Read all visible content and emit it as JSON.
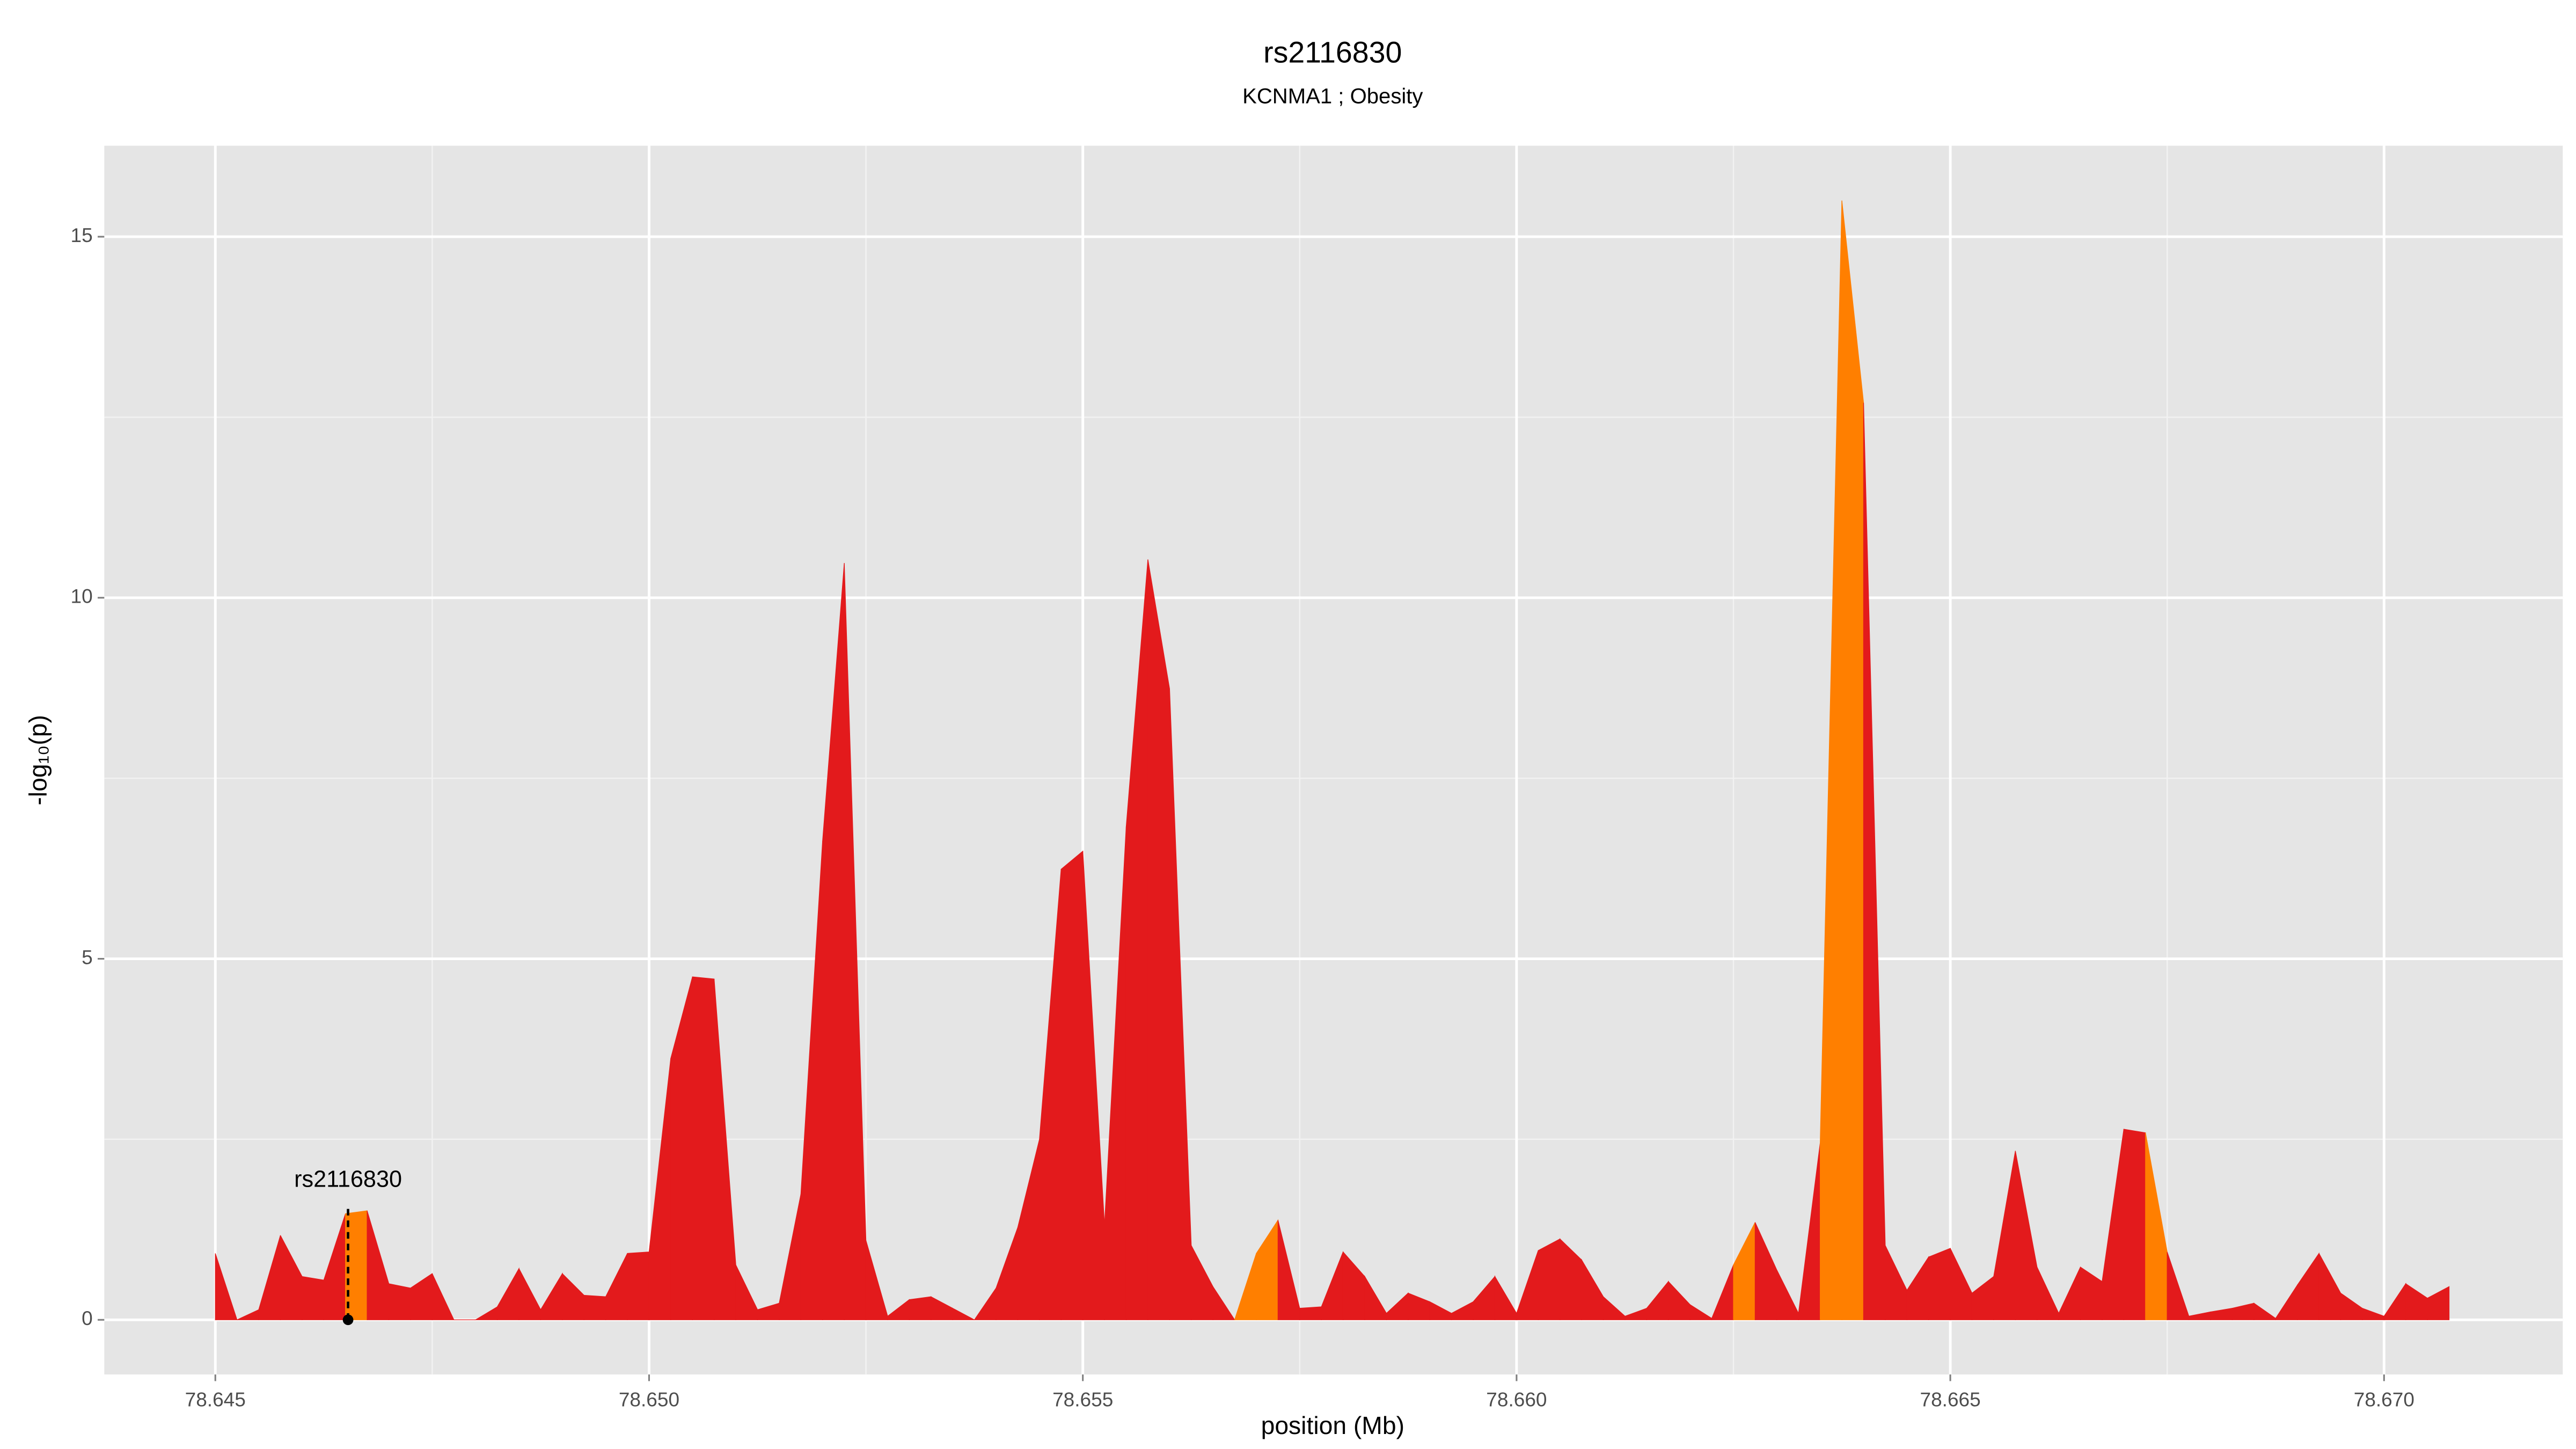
{
  "chart_data": {
    "type": "area",
    "title": "rs2116830",
    "subtitle": "KCNMA1 ; Obesity",
    "x_label": "position (Mb)",
    "y_label": "-log₁₀(p)",
    "x": [
      78.645,
      78.64525,
      78.6455,
      78.64575,
      78.646,
      78.64625,
      78.6465,
      78.64675,
      78.647,
      78.64725,
      78.6475,
      78.64775,
      78.648,
      78.64825,
      78.6485,
      78.64875,
      78.649,
      78.64925,
      78.6495,
      78.64975,
      78.65,
      78.65025,
      78.6505,
      78.65075,
      78.651,
      78.65125,
      78.6515,
      78.65175,
      78.652,
      78.65225,
      78.6525,
      78.65275,
      78.653,
      78.65325,
      78.6535,
      78.65375,
      78.654,
      78.65425,
      78.6545,
      78.65475,
      78.655,
      78.65525,
      78.6555,
      78.65575,
      78.656,
      78.65625,
      78.6565,
      78.65675,
      78.657,
      78.65725,
      78.6575,
      78.65775,
      78.658,
      78.65825,
      78.6585,
      78.65875,
      78.659,
      78.65925,
      78.6595,
      78.65975,
      78.66,
      78.66025,
      78.6605,
      78.66075,
      78.661,
      78.66125,
      78.6615,
      78.66175,
      78.662,
      78.66225,
      78.6625,
      78.66275,
      78.663,
      78.66325,
      78.6635,
      78.66375,
      78.664,
      78.66425,
      78.6645,
      78.66475,
      78.665,
      78.66525,
      78.6655,
      78.66575,
      78.666,
      78.66625,
      78.6665,
      78.66675,
      78.667,
      78.66725,
      78.6675,
      78.66775,
      78.668,
      78.66825,
      78.6685,
      78.66875,
      78.669,
      78.66925,
      78.6695,
      78.66975,
      78.67,
      78.67025,
      78.6705,
      78.67075
    ],
    "y": [
      0.92,
      0,
      0.14,
      1.17,
      0.6,
      0.55,
      1.47,
      1.51,
      0.5,
      0.44,
      0.64,
      0,
      0,
      0.18,
      0.71,
      0.14,
      0.64,
      0.34,
      0.32,
      0.92,
      0.94,
      3.62,
      4.75,
      4.72,
      0.76,
      0.14,
      0.23,
      1.74,
      6.63,
      10.48,
      1.1,
      0.05,
      0.28,
      0.32,
      0.16,
      0,
      0.44,
      1.28,
      2.5,
      6.24,
      6.49,
      1.31,
      6.83,
      10.53,
      8.74,
      1.03,
      0.46,
      0,
      0.92,
      1.38,
      0.16,
      0.18,
      0.94,
      0.6,
      0.09,
      0.37,
      0.25,
      0.09,
      0.25,
      0.6,
      0.09,
      0.96,
      1.12,
      0.83,
      0.32,
      0.05,
      0.16,
      0.53,
      0.21,
      0.02,
      0.76,
      1.35,
      0.69,
      0.09,
      2.45,
      15.5,
      12.7,
      1.03,
      0.41,
      0.87,
      0.99,
      0.37,
      0.6,
      2.34,
      0.73,
      0.09,
      0.73,
      0.53,
      2.64,
      2.59,
      0.94,
      0.05,
      0.11,
      0.16,
      0.23,
      0.02,
      0.48,
      0.92,
      0.37,
      0.16,
      0.05,
      0.5,
      0.3,
      0.46
    ],
    "color": "#e31a1c",
    "highlight_color": "#ff7f00",
    "highlight_segments": [
      6,
      47,
      48,
      70,
      74,
      75,
      89
    ],
    "annotation": {
      "text": "rs2116830",
      "x": 78.64653
    },
    "xlim": [
      78.64372,
      78.67206
    ],
    "ylim": [
      -0.757,
      16.26
    ],
    "xticks": [
      78.645,
      {
        "value": 78.65,
        "label": "78.650"
      },
      78.655,
      {
        "value": 78.66,
        "label": "78.660"
      },
      78.665,
      {
        "value": 78.67,
        "label": "78.670"
      }
    ],
    "yticks": [
      0,
      5,
      10,
      15
    ],
    "grid": true
  }
}
